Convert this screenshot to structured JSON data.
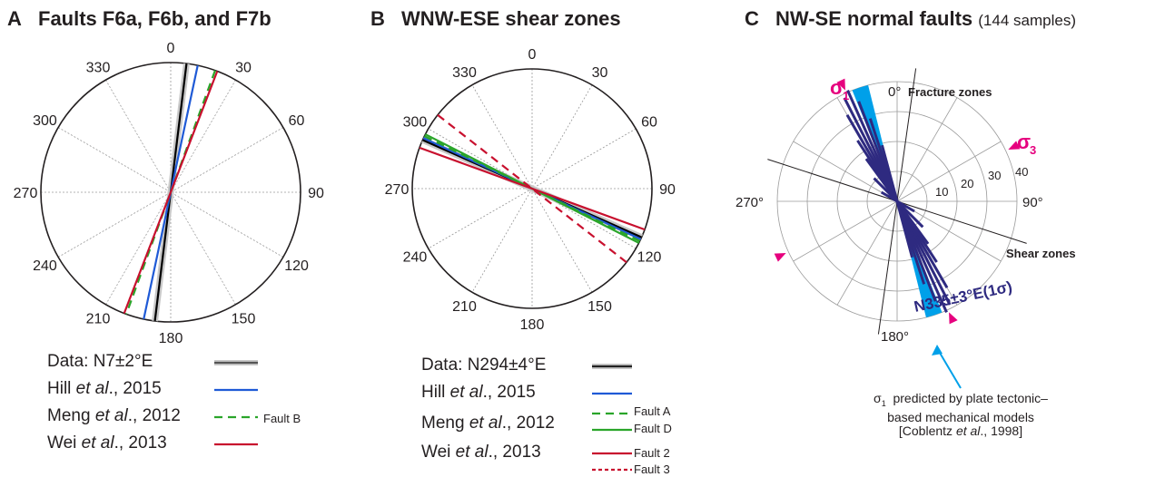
{
  "panels": [
    {
      "id": "a",
      "letter": "A",
      "title": "Faults F6a, F6b, and F7b",
      "angle_labels": [
        "0",
        "30",
        "60",
        "90",
        "120",
        "150",
        "180",
        "210",
        "240",
        "270",
        "300",
        "330"
      ],
      "lines": [
        {
          "name": "data",
          "azimuth": 7,
          "color": "#000000",
          "style": "solid",
          "halo": true
        },
        {
          "name": "hill",
          "azimuth": 12,
          "color": "#1f5ad6",
          "style": "solid"
        },
        {
          "name": "meng",
          "azimuth": 20,
          "color": "#2aa52a",
          "style": "dashed"
        },
        {
          "name": "wei",
          "azimuth": 21,
          "color": "#c8102e",
          "style": "solid"
        }
      ],
      "legend": [
        {
          "main": "Data: N7±2°E",
          "italic": "",
          "suffix": "",
          "swatch": "data"
        },
        {
          "main": "Hill ",
          "italic": "et al",
          "suffix": "., 2015",
          "swatch": "hill"
        },
        {
          "main": "Meng ",
          "italic": "et al",
          "suffix": "., 2012",
          "swatch": "meng",
          "tag": "Fault B"
        },
        {
          "main": "Wei ",
          "italic": "et al",
          "suffix": "., 2013",
          "swatch": "wei"
        }
      ]
    },
    {
      "id": "b",
      "letter": "B",
      "title": "WNW-ESE shear zones",
      "angle_labels": [
        "0",
        "30",
        "60",
        "90",
        "120",
        "150",
        "180",
        "210",
        "240",
        "270",
        "300",
        "330"
      ],
      "lines": [
        {
          "name": "data",
          "azimuth": 294,
          "color": "#000000",
          "style": "solid",
          "halo": true
        },
        {
          "name": "hill",
          "azimuth": 295,
          "color": "#1f5ad6",
          "style": "solid"
        },
        {
          "name": "fault-a",
          "azimuth": 296,
          "color": "#2aa52a",
          "style": "dashed"
        },
        {
          "name": "fault-d",
          "azimuth": 297,
          "color": "#2aa52a",
          "style": "solid"
        },
        {
          "name": "fault-2",
          "azimuth": 290,
          "color": "#c8102e",
          "style": "solid"
        },
        {
          "name": "fault-3",
          "azimuth": 308,
          "color": "#c8102e",
          "style": "dashed"
        }
      ],
      "legend": [
        {
          "main": "Data: N294±4°E",
          "italic": "",
          "suffix": "",
          "swatch": "data"
        },
        {
          "main": "Hill ",
          "italic": "et al",
          "suffix": "., 2015",
          "swatch": "hill"
        },
        {
          "main": "Meng ",
          "italic": "et al",
          "suffix": "., 2012",
          "swatch": "meng",
          "tags": [
            "Fault A",
            "Fault D"
          ]
        },
        {
          "main": "Wei ",
          "italic": "et al",
          "suffix": "., 2013",
          "swatch": "wei",
          "tags": [
            "Fault 2",
            "Fault 3"
          ]
        }
      ]
    },
    {
      "id": "c",
      "letter": "C",
      "title": "NW-SE normal faults",
      "subtitle": "(144 samples)",
      "angle_labels": {
        "north": "0°",
        "east": "90°",
        "south": "180°",
        "west": "270°"
      },
      "ring_labels": [
        "10",
        "20",
        "30",
        "40"
      ],
      "fracture_label": "Fracture zones",
      "shear_label": "Shear zones",
      "sigma1": "σ",
      "sigma1_sub": "1",
      "sigma3": "σ",
      "sigma3_sub": "3",
      "mean_label": "N335±3°E(1σ)",
      "blue_wedge_azimuth": 162,
      "rose_azimuth": 335,
      "note": {
        "sym": "σ",
        "sub": "1",
        "line1": "predicted by plate tectonic–",
        "line2": "based mechanical models",
        "line3_pre": "[Coblentz ",
        "line3_it": "et al",
        "line3_post": "., 1998]"
      }
    }
  ],
  "colors": {
    "accent_pink": "#e6007e",
    "wedge_blue": "#00a0e9",
    "rose_navy": "#2e2a80",
    "grid": "#9a9a9a"
  }
}
